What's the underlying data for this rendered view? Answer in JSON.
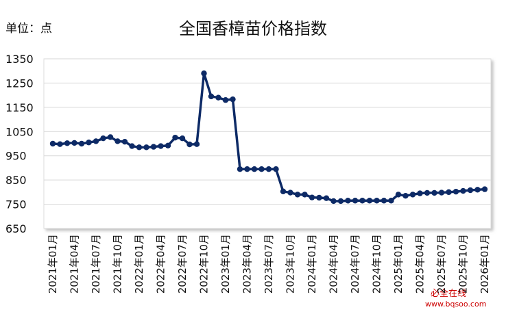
{
  "chart_data": {
    "type": "line",
    "title": "全国香樟苗价格指数",
    "y_label": "单位：点",
    "watermark": [
      "必全在线",
      "www.bqsoo.com"
    ],
    "categories": [
      "2021年01月",
      null,
      null,
      "2021年04月",
      null,
      null,
      "2021年07月",
      null,
      null,
      "2021年10月",
      null,
      null,
      "2022年01月",
      null,
      null,
      "2022年04月",
      null,
      null,
      "2022年07月",
      null,
      null,
      "2022年10月",
      null,
      null,
      "2023年01月",
      null,
      null,
      "2023年04月",
      null,
      null,
      "2023年07月",
      null,
      null,
      "2023年10月",
      null,
      null,
      "2024年01月",
      null,
      null,
      "2024年04月",
      null,
      null,
      "2024年07月",
      null,
      null,
      "2024年10月",
      null,
      null,
      "2025年01月",
      null,
      null,
      "2025年04月",
      null,
      null,
      "2025年07月",
      null,
      null,
      "2025年10月",
      null,
      null,
      "2026年01月"
    ],
    "series": [
      {
        "name": "全国香樟苗价格指数",
        "color": "#0d2a66",
        "values": [
          1000,
          998,
          1002,
          1003,
          1000,
          1005,
          1010,
          1022,
          1027,
          1010,
          1008,
          990,
          985,
          985,
          987,
          990,
          992,
          1025,
          1022,
          997,
          998,
          1290,
          1195,
          1190,
          1180,
          1183,
          895,
          895,
          895,
          895,
          895,
          895,
          803,
          798,
          790,
          790,
          778,
          777,
          775,
          763,
          763,
          765,
          765,
          765,
          765,
          765,
          765,
          765,
          790,
          785,
          790,
          795,
          797,
          797,
          798,
          800,
          802,
          805,
          808,
          810,
          812
        ]
      }
    ],
    "ylim": [
      650,
      1350
    ],
    "yticks": [
      650,
      750,
      850,
      950,
      1050,
      1150,
      1250,
      1350
    ],
    "grid": true
  }
}
